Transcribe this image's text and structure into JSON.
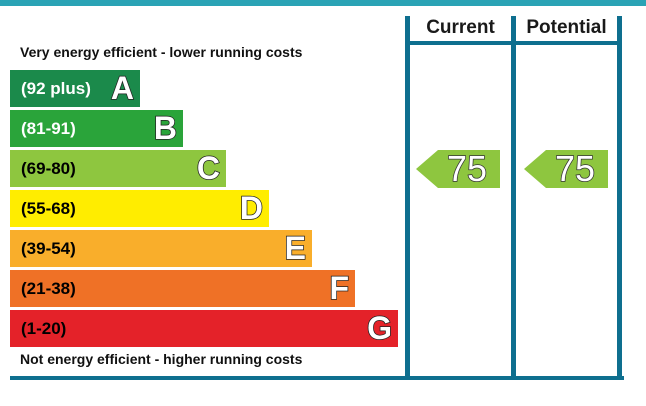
{
  "header": {
    "current_label": "Current",
    "potential_label": "Potential"
  },
  "captions": {
    "top": "Very energy efficient - lower running costs",
    "bottom": "Not energy efficient - higher running costs"
  },
  "chart_data": {
    "type": "bar",
    "bands": [
      {
        "range": "(92 plus)",
        "letter": "A",
        "color": "#1b8a4b",
        "text_color": "#ffffff"
      },
      {
        "range": "(81-91)",
        "letter": "B",
        "color": "#2aa43a",
        "text_color": "#ffffff"
      },
      {
        "range": "(69-80)",
        "letter": "C",
        "color": "#8ec63f",
        "text_color": "#000000"
      },
      {
        "range": "(55-68)",
        "letter": "D",
        "color": "#ffed00",
        "text_color": "#000000"
      },
      {
        "range": "(39-54)",
        "letter": "E",
        "color": "#f9ae2b",
        "text_color": "#000000"
      },
      {
        "range": "(21-38)",
        "letter": "F",
        "color": "#ef7126",
        "text_color": "#000000"
      },
      {
        "range": "(1-20)",
        "letter": "G",
        "color": "#e42229",
        "text_color": "#000000"
      }
    ],
    "current": {
      "value": 75,
      "band": "C",
      "color": "#8ec63f"
    },
    "potential": {
      "value": 75,
      "band": "C",
      "color": "#8ec63f"
    }
  }
}
